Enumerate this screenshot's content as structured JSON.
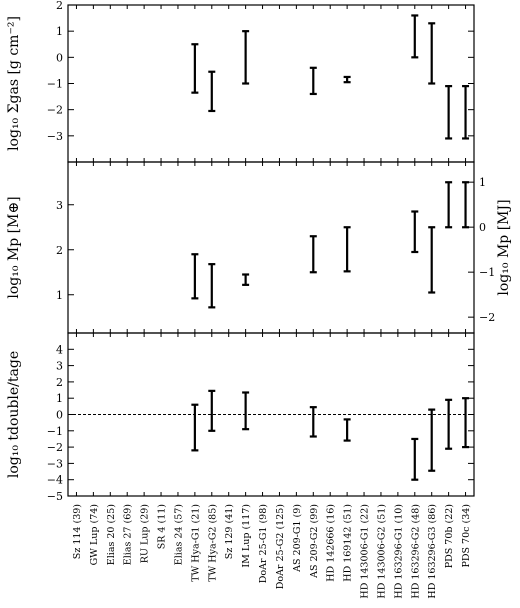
{
  "chart_data": {
    "type": "errorbar",
    "categories": [
      "Sz 114 (39)",
      "GW Lup (74)",
      "Elias 20 (25)",
      "Elias 27 (69)",
      "RU Lup (29)",
      "SR 4 (11)",
      "Elias 24 (57)",
      "TW Hya-G1 (21)",
      "TW Hya-G2 (85)",
      "Sz 129 (41)",
      "IM Lup (117)",
      "DoAr 25-G1 (98)",
      "DoAr 25-G2 (125)",
      "AS 209-G1 (9)",
      "AS 209-G2 (99)",
      "HD 142666 (16)",
      "HD 169142 (51)",
      "HD 143006-G1 (22)",
      "HD 143006-G2 (51)",
      "HD 163296-G1 (10)",
      "HD 163296-G2 (48)",
      "HD 163296-G3 (86)",
      "PDS 70b (22)",
      "PDS 70c (34)"
    ],
    "panels": [
      {
        "id": "sigma",
        "ylabel": "log₁₀ Σgas [g cm⁻²]",
        "ylim": [
          -4,
          2
        ],
        "yticks": [
          -3,
          -2,
          -1,
          0,
          1,
          2
        ],
        "ranges": [
          {
            "index": 7,
            "low": -1.35,
            "high": 0.5
          },
          {
            "index": 8,
            "low": -2.05,
            "high": -0.55
          },
          {
            "index": 10,
            "low": -1.0,
            "high": 1.0
          },
          {
            "index": 14,
            "low": -1.4,
            "high": -0.4
          },
          {
            "index": 16,
            "low": -0.95,
            "high": -0.75
          },
          {
            "index": 20,
            "low": 0.0,
            "high": 1.6
          },
          {
            "index": 21,
            "low": -1.0,
            "high": 1.3
          },
          {
            "index": 22,
            "low": -3.1,
            "high": -1.1
          },
          {
            "index": 23,
            "low": -3.1,
            "high": -1.1
          }
        ]
      },
      {
        "id": "mass",
        "ylabel": "log₁₀ Mp [M⊕]",
        "ylabel_right": "log₁₀ Mp [MJ]",
        "ylim": [
          0.15,
          3.95
        ],
        "yticks": [
          1,
          2,
          3
        ],
        "yticks_right": [
          -2,
          -1,
          0,
          1
        ],
        "ranges": [
          {
            "index": 7,
            "low": 0.92,
            "high": 1.9
          },
          {
            "index": 8,
            "low": 0.72,
            "high": 1.68
          },
          {
            "index": 10,
            "low": 1.22,
            "high": 1.45
          },
          {
            "index": 14,
            "low": 1.5,
            "high": 2.3
          },
          {
            "index": 16,
            "low": 1.52,
            "high": 2.5
          },
          {
            "index": 20,
            "low": 1.95,
            "high": 2.85
          },
          {
            "index": 21,
            "low": 1.05,
            "high": 2.5
          },
          {
            "index": 22,
            "low": 2.5,
            "high": 3.5
          },
          {
            "index": 23,
            "low": 2.5,
            "high": 3.5
          }
        ]
      },
      {
        "id": "tdouble",
        "ylabel": "log₁₀ tdouble/tage",
        "ylim": [
          -5,
          5
        ],
        "yticks": [
          -5,
          -4,
          -3,
          -2,
          -1,
          0,
          1,
          2,
          3,
          4
        ],
        "ranges": [
          {
            "index": 7,
            "low": -2.2,
            "high": 0.6
          },
          {
            "index": 8,
            "low": -1.0,
            "high": 1.45
          },
          {
            "index": 10,
            "low": -0.9,
            "high": 1.35
          },
          {
            "index": 14,
            "low": -1.35,
            "high": 0.45
          },
          {
            "index": 16,
            "low": -1.6,
            "high": -0.3
          },
          {
            "index": 20,
            "low": -4.0,
            "high": -1.5
          },
          {
            "index": 21,
            "low": -3.45,
            "high": 0.3
          },
          {
            "index": 22,
            "low": -2.1,
            "high": 0.9
          },
          {
            "index": 23,
            "low": -2.0,
            "high": 1.0
          }
        ],
        "reference_line": 0
      }
    ]
  }
}
